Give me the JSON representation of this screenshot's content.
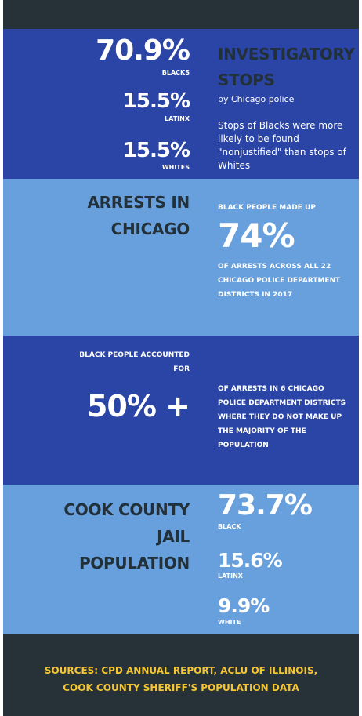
{
  "section1": {
    "stats": [
      {
        "value": "70.9%",
        "label": "BLACKS"
      },
      {
        "value": "15.5%",
        "label": "LATINX"
      },
      {
        "value": "15.5%",
        "label": "WHITES"
      }
    ],
    "heading": [
      "INVESTIGATORY",
      "STOPS"
    ],
    "subheading": "by Chicago police",
    "text": "Stops of Blacks were more likely to be found \"nonjustified\" than stops of Whites"
  },
  "section2": {
    "heading": [
      "ARRESTS IN",
      "CHICAGO"
    ],
    "intro": "BLACK PEOPLE MADE UP",
    "value": "74%",
    "text": "OF ARRESTS ACROSS ALL 22 CHICAGO POLICE DEPARTMENT DISTRICTS IN 2017"
  },
  "section3": {
    "intro": "BLACK PEOPLE ACCOUNTED FOR",
    "value": "50% +",
    "text": "OF ARRESTS IN 6 CHICAGO POLICE DEPARTMENT DISTRICTS WHERE THEY DO NOT MAKE UP THE MAJORITY OF THE POPULATION"
  },
  "section4": {
    "heading": [
      "COOK COUNTY",
      "JAIL",
      "POPULATION"
    ],
    "stats": [
      {
        "value": "73.7%",
        "label": "BLACK"
      },
      {
        "value": "15.6%",
        "label": "LATINX"
      },
      {
        "value": "9.9%",
        "label": "WHITE"
      }
    ]
  },
  "footer": {
    "lines": [
      "SOURCES: CPD ANNUAL REPORT, ACLU OF ILLINOIS,",
      "COOK COUNTY SHERIFF'S POPULATION DATA"
    ]
  }
}
